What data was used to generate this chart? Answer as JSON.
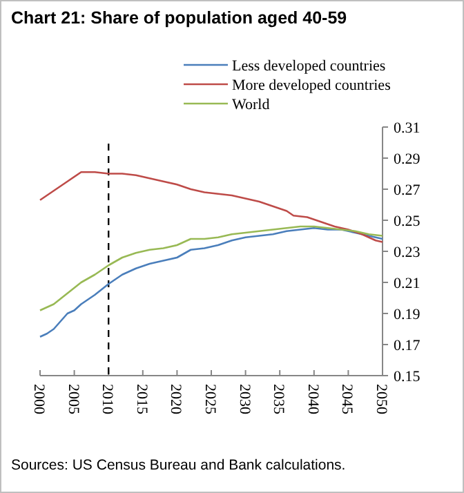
{
  "chart_data": {
    "type": "line",
    "title": "Chart 21: Share of population aged 40-59",
    "series": [
      {
        "name": "Less developed countries",
        "color": "#4a7ebb",
        "x": [
          2000,
          2001,
          2002,
          2003,
          2004,
          2005,
          2006,
          2008,
          2010,
          2012,
          2014,
          2016,
          2018,
          2020,
          2022,
          2024,
          2026,
          2028,
          2030,
          2032,
          2034,
          2036,
          2038,
          2040,
          2042,
          2044,
          2046,
          2048,
          2050
        ],
        "values": [
          0.175,
          0.177,
          0.18,
          0.185,
          0.19,
          0.192,
          0.196,
          0.202,
          0.209,
          0.215,
          0.219,
          0.222,
          0.224,
          0.226,
          0.231,
          0.232,
          0.234,
          0.237,
          0.239,
          0.24,
          0.241,
          0.243,
          0.244,
          0.245,
          0.244,
          0.244,
          0.242,
          0.24,
          0.238
        ]
      },
      {
        "name": "More developed countries",
        "color": "#be4b48",
        "x": [
          2000,
          2002,
          2004,
          2006,
          2008,
          2010,
          2012,
          2014,
          2016,
          2018,
          2020,
          2022,
          2024,
          2026,
          2028,
          2030,
          2032,
          2034,
          2036,
          2037,
          2039,
          2041,
          2043,
          2045,
          2047,
          2049,
          2050
        ],
        "values": [
          0.263,
          0.269,
          0.275,
          0.281,
          0.281,
          0.28,
          0.28,
          0.279,
          0.277,
          0.275,
          0.273,
          0.27,
          0.268,
          0.267,
          0.266,
          0.264,
          0.262,
          0.259,
          0.256,
          0.253,
          0.252,
          0.249,
          0.246,
          0.244,
          0.241,
          0.237,
          0.236
        ]
      },
      {
        "name": "World",
        "color": "#98b954",
        "x": [
          2000,
          2002,
          2004,
          2006,
          2008,
          2010,
          2012,
          2014,
          2016,
          2018,
          2020,
          2022,
          2024,
          2026,
          2028,
          2030,
          2032,
          2034,
          2036,
          2038,
          2040,
          2042,
          2044,
          2046,
          2048,
          2050
        ],
        "values": [
          0.192,
          0.196,
          0.203,
          0.21,
          0.215,
          0.221,
          0.226,
          0.229,
          0.231,
          0.232,
          0.234,
          0.238,
          0.238,
          0.239,
          0.241,
          0.242,
          0.243,
          0.244,
          0.245,
          0.246,
          0.246,
          0.245,
          0.244,
          0.243,
          0.241,
          0.24
        ]
      }
    ],
    "xlim": [
      2000,
      2050
    ],
    "xticks": [
      2000,
      2005,
      2010,
      2015,
      2020,
      2025,
      2030,
      2035,
      2040,
      2045,
      2050
    ],
    "ylim": [
      0.15,
      0.31
    ],
    "yticks": [
      0.15,
      0.17,
      0.19,
      0.21,
      0.23,
      0.25,
      0.27,
      0.29,
      0.31
    ],
    "ref_lines": [
      {
        "axis": "x",
        "value": 2010,
        "color": "#000000",
        "line_style": "dashed"
      }
    ],
    "legend": "top right",
    "annotations": [
      "Sources: US Census Bureau and Bank calculations."
    ]
  }
}
